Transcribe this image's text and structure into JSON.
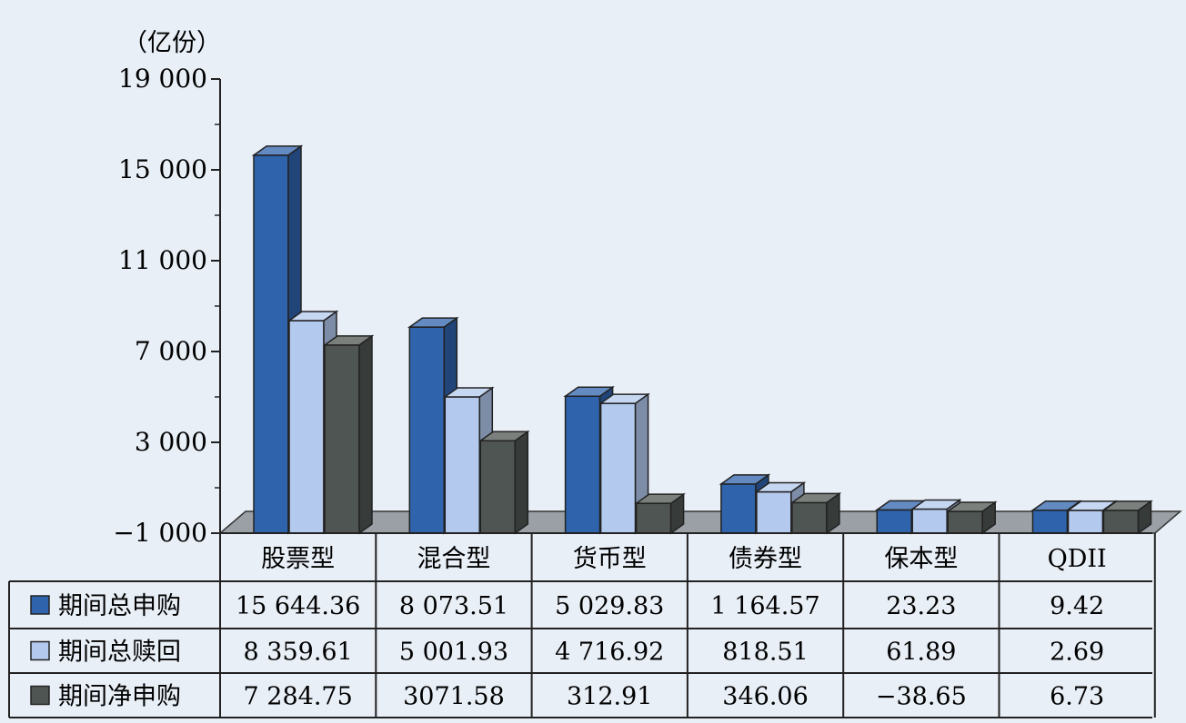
{
  "chart_data": {
    "type": "bar",
    "unit_label": "（亿份）",
    "y_ticks": [
      "19 000",
      "15 000",
      "11 000",
      "7 000",
      "3 000",
      "−1 000"
    ],
    "ylim": [
      -1000,
      19000
    ],
    "categories": [
      "股票型",
      "混合型",
      "货币型",
      "债券型",
      "保本型",
      "QDII"
    ],
    "series": [
      {
        "name": "期间总申购",
        "color": "#2f63ac",
        "values": [
          15644.36,
          8073.51,
          5029.83,
          1164.57,
          23.23,
          9.42
        ],
        "labels": [
          "15 644.36",
          "8 073.51",
          "5 029.83",
          "1 164.57",
          "23.23",
          "9.42"
        ]
      },
      {
        "name": "期间总赎回",
        "color": "#b3c9ee",
        "values": [
          8359.61,
          5001.93,
          4716.92,
          818.51,
          61.89,
          2.69
        ],
        "labels": [
          "8 359.61",
          "5 001.93",
          "4 716.92",
          "818.51",
          "61.89",
          "2.69"
        ]
      },
      {
        "name": "期间净申购",
        "color": "#4f5552",
        "values": [
          7284.75,
          3071.58,
          312.91,
          346.06,
          -38.65,
          6.73
        ],
        "labels": [
          "7 284.75",
          "3071.58",
          "312.91",
          "346.06",
          "−38.65",
          "6.73"
        ]
      }
    ],
    "grid": false,
    "legend": "data-table"
  }
}
